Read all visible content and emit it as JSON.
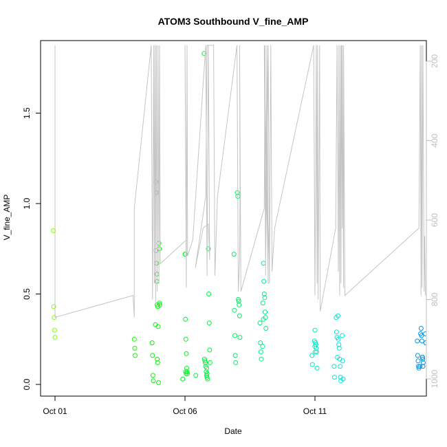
{
  "chart_data": {
    "type": "scatter",
    "title": "ATOM3 Southbound V_fine_AMP",
    "xlabel": "Date",
    "ylabel": "V_fine_AMP",
    "x_range_days": [
      0,
      14.6
    ],
    "ylim": [
      -0.05,
      1.9
    ],
    "x_ticks": [
      {
        "day": 0,
        "label": "Oct 01"
      },
      {
        "day": 5,
        "label": "Oct 06"
      },
      {
        "day": 10,
        "label": "Oct 11"
      }
    ],
    "y_ticks": [
      0.0,
      0.5,
      1.0,
      1.5
    ],
    "right_axis": {
      "ylim": [
        1050,
        160
      ],
      "ticks": [
        200,
        400,
        600,
        800,
        1000
      ],
      "color": "#bfbfbf"
    },
    "points": [
      {
        "day": 0.0,
        "values": [
          0.85,
          0.43,
          0.37,
          0.3,
          0.26
        ]
      },
      {
        "day": 3.05,
        "values": [
          0.25,
          0.2,
          0.16
        ]
      },
      {
        "day": 3.8,
        "values": [
          0.33,
          0.23,
          0.16,
          0.05,
          0.02
        ]
      },
      {
        "day": 3.9,
        "values": [
          1.12,
          1.06,
          0.61,
          0.14,
          0.12
        ]
      },
      {
        "day": 3.95,
        "values": [
          0.78,
          0.75,
          0.74,
          0.67,
          0.57,
          0.44,
          0.43,
          0.32,
          0.01
        ]
      },
      {
        "day": 4.05,
        "values": [
          0.45,
          0.44
        ]
      },
      {
        "day": 4.98,
        "values": [
          0.72,
          0.07,
          0.06,
          0.03
        ]
      },
      {
        "day": 5.05,
        "values": [
          0.72,
          0.36,
          0.25,
          0.17,
          0.09,
          0.07,
          0.06
        ]
      },
      {
        "day": 5.4,
        "values": [
          0.05
        ]
      },
      {
        "day": 5.8,
        "values": [
          1.83,
          0.14,
          0.13,
          0.12,
          0.1,
          0.07,
          0.05,
          0.04
        ]
      },
      {
        "day": 5.9,
        "values": [
          0.75,
          0.5,
          0.34,
          0.19,
          0.12,
          0.09,
          0.06,
          0.03
        ]
      },
      {
        "day": 6.95,
        "values": [
          1.06,
          0.72,
          0.41,
          0.27,
          0.16,
          0.12
        ]
      },
      {
        "day": 7.05,
        "values": [
          1.04,
          0.47,
          0.46,
          0.44,
          0.38,
          0.26
        ]
      },
      {
        "day": 7.95,
        "values": [
          0.45,
          0.36,
          0.34,
          0.23,
          0.18,
          0.14
        ]
      },
      {
        "day": 8.05,
        "values": [
          0.67,
          0.57,
          0.5,
          0.48,
          0.4,
          0.37,
          0.31,
          0.21
        ]
      },
      {
        "day": 9.95,
        "values": [
          0.24,
          0.21,
          0.18,
          0.16,
          0.11
        ]
      },
      {
        "day": 10.05,
        "values": [
          0.3,
          0.23,
          0.22,
          0.2,
          0.18,
          0.09
        ]
      },
      {
        "day": 10.8,
        "values": [
          0.37,
          0.29,
          0.26,
          0.15,
          0.1,
          0.04
        ]
      },
      {
        "day": 10.95,
        "values": [
          0.38,
          0.25,
          0.22,
          0.2,
          0.14,
          0.1,
          0.04,
          0.02
        ]
      },
      {
        "day": 11.05,
        "values": [
          0.27,
          0.13,
          0.03
        ]
      },
      {
        "day": 14.0,
        "values": [
          0.28,
          0.24,
          0.16,
          0.13,
          0.1,
          0.09
        ]
      },
      {
        "day": 14.1,
        "values": [
          0.31,
          0.27,
          0.24,
          0.15,
          0.14,
          0.12,
          0.1
        ]
      },
      {
        "day": 14.2,
        "values": [
          0.28,
          0.23,
          0.15,
          0.1
        ]
      }
    ],
    "grey_line": [
      [
        0.0,
        160
      ],
      [
        0.0,
        845
      ],
      [
        3.0,
        790
      ],
      [
        3.05,
        845
      ],
      [
        3.05,
        570
      ],
      [
        3.7,
        160
      ],
      [
        3.75,
        800
      ],
      [
        3.8,
        160
      ],
      [
        3.82,
        760
      ],
      [
        3.85,
        160
      ],
      [
        3.87,
        810
      ],
      [
        3.9,
        160
      ],
      [
        3.93,
        780
      ],
      [
        3.96,
        160
      ],
      [
        4.0,
        760
      ],
      [
        4.02,
        160
      ],
      [
        4.05,
        710
      ],
      [
        5.05,
        650
      ],
      [
        5.0,
        160
      ],
      [
        5.05,
        770
      ],
      [
        5.08,
        160
      ],
      [
        5.1,
        690
      ],
      [
        5.3,
        650
      ],
      [
        5.8,
        160
      ],
      [
        5.85,
        740
      ],
      [
        5.9,
        160
      ],
      [
        5.95,
        700
      ],
      [
        5.9,
        610
      ],
      [
        5.7,
        620
      ],
      [
        5.4,
        720
      ],
      [
        5.8,
        540
      ],
      [
        5.85,
        160
      ],
      [
        6.1,
        160
      ],
      [
        6.15,
        740
      ],
      [
        6.25,
        540
      ],
      [
        7.0,
        160
      ],
      [
        7.05,
        780
      ],
      [
        7.1,
        700
      ],
      [
        7.12,
        520
      ],
      [
        7.1,
        160
      ],
      [
        7.15,
        780
      ],
      [
        8.05,
        570
      ],
      [
        8.08,
        160
      ],
      [
        8.1,
        740
      ],
      [
        8.15,
        160
      ],
      [
        8.2,
        760
      ],
      [
        8.05,
        160
      ],
      [
        8.1,
        720
      ],
      [
        8.2,
        160
      ],
      [
        8.25,
        720
      ],
      [
        8.15,
        520
      ],
      [
        8.2,
        160
      ],
      [
        8.25,
        760
      ],
      [
        8.3,
        180
      ],
      [
        8.3,
        160
      ],
      [
        8.35,
        730
      ],
      [
        8.45,
        620
      ],
      [
        9.95,
        160
      ],
      [
        10.0,
        790
      ],
      [
        10.02,
        560
      ],
      [
        10.05,
        160
      ],
      [
        10.08,
        760
      ],
      [
        10.1,
        160
      ],
      [
        10.12,
        800
      ],
      [
        10.15,
        520
      ],
      [
        10.18,
        160
      ],
      [
        10.2,
        830
      ],
      [
        10.8,
        620
      ],
      [
        10.85,
        160
      ],
      [
        10.9,
        730
      ],
      [
        10.92,
        160
      ],
      [
        10.95,
        790
      ],
      [
        10.98,
        160
      ],
      [
        11.0,
        760
      ],
      [
        11.02,
        160
      ],
      [
        11.05,
        620
      ],
      [
        11.05,
        160
      ],
      [
        11.1,
        770
      ],
      [
        11.1,
        160
      ],
      [
        11.15,
        790
      ],
      [
        14.0,
        620
      ],
      [
        14.05,
        160
      ],
      [
        14.08,
        790
      ],
      [
        14.1,
        160
      ],
      [
        14.12,
        770
      ],
      [
        14.15,
        160
      ],
      [
        14.2,
        780
      ],
      [
        14.22,
        640
      ],
      [
        14.25,
        790
      ]
    ]
  }
}
